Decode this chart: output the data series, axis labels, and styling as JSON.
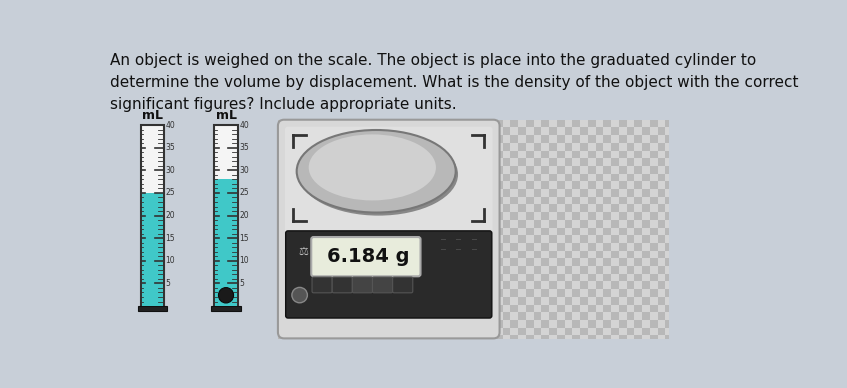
{
  "bg_color": "#c8cfd8",
  "text_color": "#111111",
  "question_text": "An object is weighed on the scale. The object is place into the graduated cylinder to\ndetermine the volume by displacement. What is the density of the object with the correct\nsignificant figures? Include appropriate units.",
  "cyl1_water_level": 25,
  "cyl2_water_level": 28,
  "cyl_min": 0,
  "cyl_max": 40,
  "cyl_tick_step": 5,
  "water_color": "#40c8c8",
  "cyl_bg": "#f5f5f5",
  "cyl_border": "#333333",
  "scale_display": "6.184 g",
  "checker_color1": "#b8b8b8",
  "checker_color2": "#d4d4d4",
  "object_color": "#1a1a1a",
  "scale_body_color": "#dcdcdc",
  "scale_panel_color": "#2a2a2a",
  "scale_display_bg": "#e8e8e8",
  "scale_pan_color": "#aaaaaa"
}
